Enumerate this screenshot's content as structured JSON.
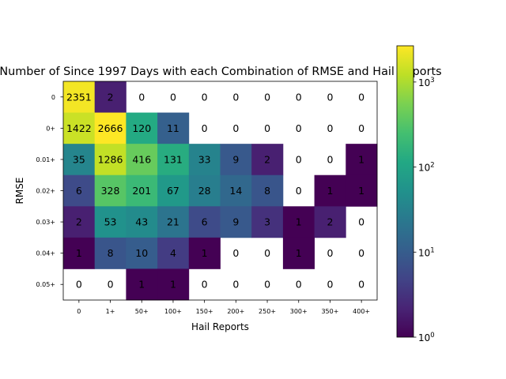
{
  "chart_data": {
    "type": "heatmap",
    "title": "Number of Since 1997 Days with each Combination of RMSE and Hail Reports",
    "xlabel": "Hail Reports",
    "ylabel": "RMSE",
    "x_categories": [
      "0",
      "1+",
      "50+",
      "100+",
      "150+",
      "200+",
      "250+",
      "300+",
      "350+",
      "400+"
    ],
    "y_categories": [
      "0",
      "0+",
      "0.01+",
      "0.02+",
      "0.03+",
      "0.04+",
      "0.05+"
    ],
    "values": [
      [
        2351,
        2,
        0,
        0,
        0,
        0,
        0,
        0,
        0,
        0
      ],
      [
        1422,
        2666,
        120,
        11,
        0,
        0,
        0,
        0,
        0,
        0
      ],
      [
        35,
        1286,
        416,
        131,
        33,
        9,
        2,
        0,
        0,
        1
      ],
      [
        6,
        328,
        201,
        67,
        28,
        14,
        8,
        0,
        1,
        1
      ],
      [
        2,
        53,
        43,
        21,
        6,
        9,
        3,
        1,
        2,
        0
      ],
      [
        1,
        8,
        10,
        4,
        1,
        0,
        0,
        1,
        0,
        0
      ],
      [
        0,
        0,
        1,
        1,
        0,
        0,
        0,
        0,
        0,
        0
      ]
    ],
    "colorscale": "viridis",
    "color_scale_type": "log",
    "color_range": [
      1,
      2666
    ],
    "zero_color": "#ffffff",
    "colorbar": {
      "ticks": [
        {
          "value": 1,
          "base": "10",
          "exp": "0"
        },
        {
          "value": 10,
          "base": "10",
          "exp": "1"
        },
        {
          "value": 100,
          "base": "10",
          "exp": "2"
        },
        {
          "value": 1000,
          "base": "10",
          "exp": "3"
        }
      ]
    },
    "grid": false
  }
}
